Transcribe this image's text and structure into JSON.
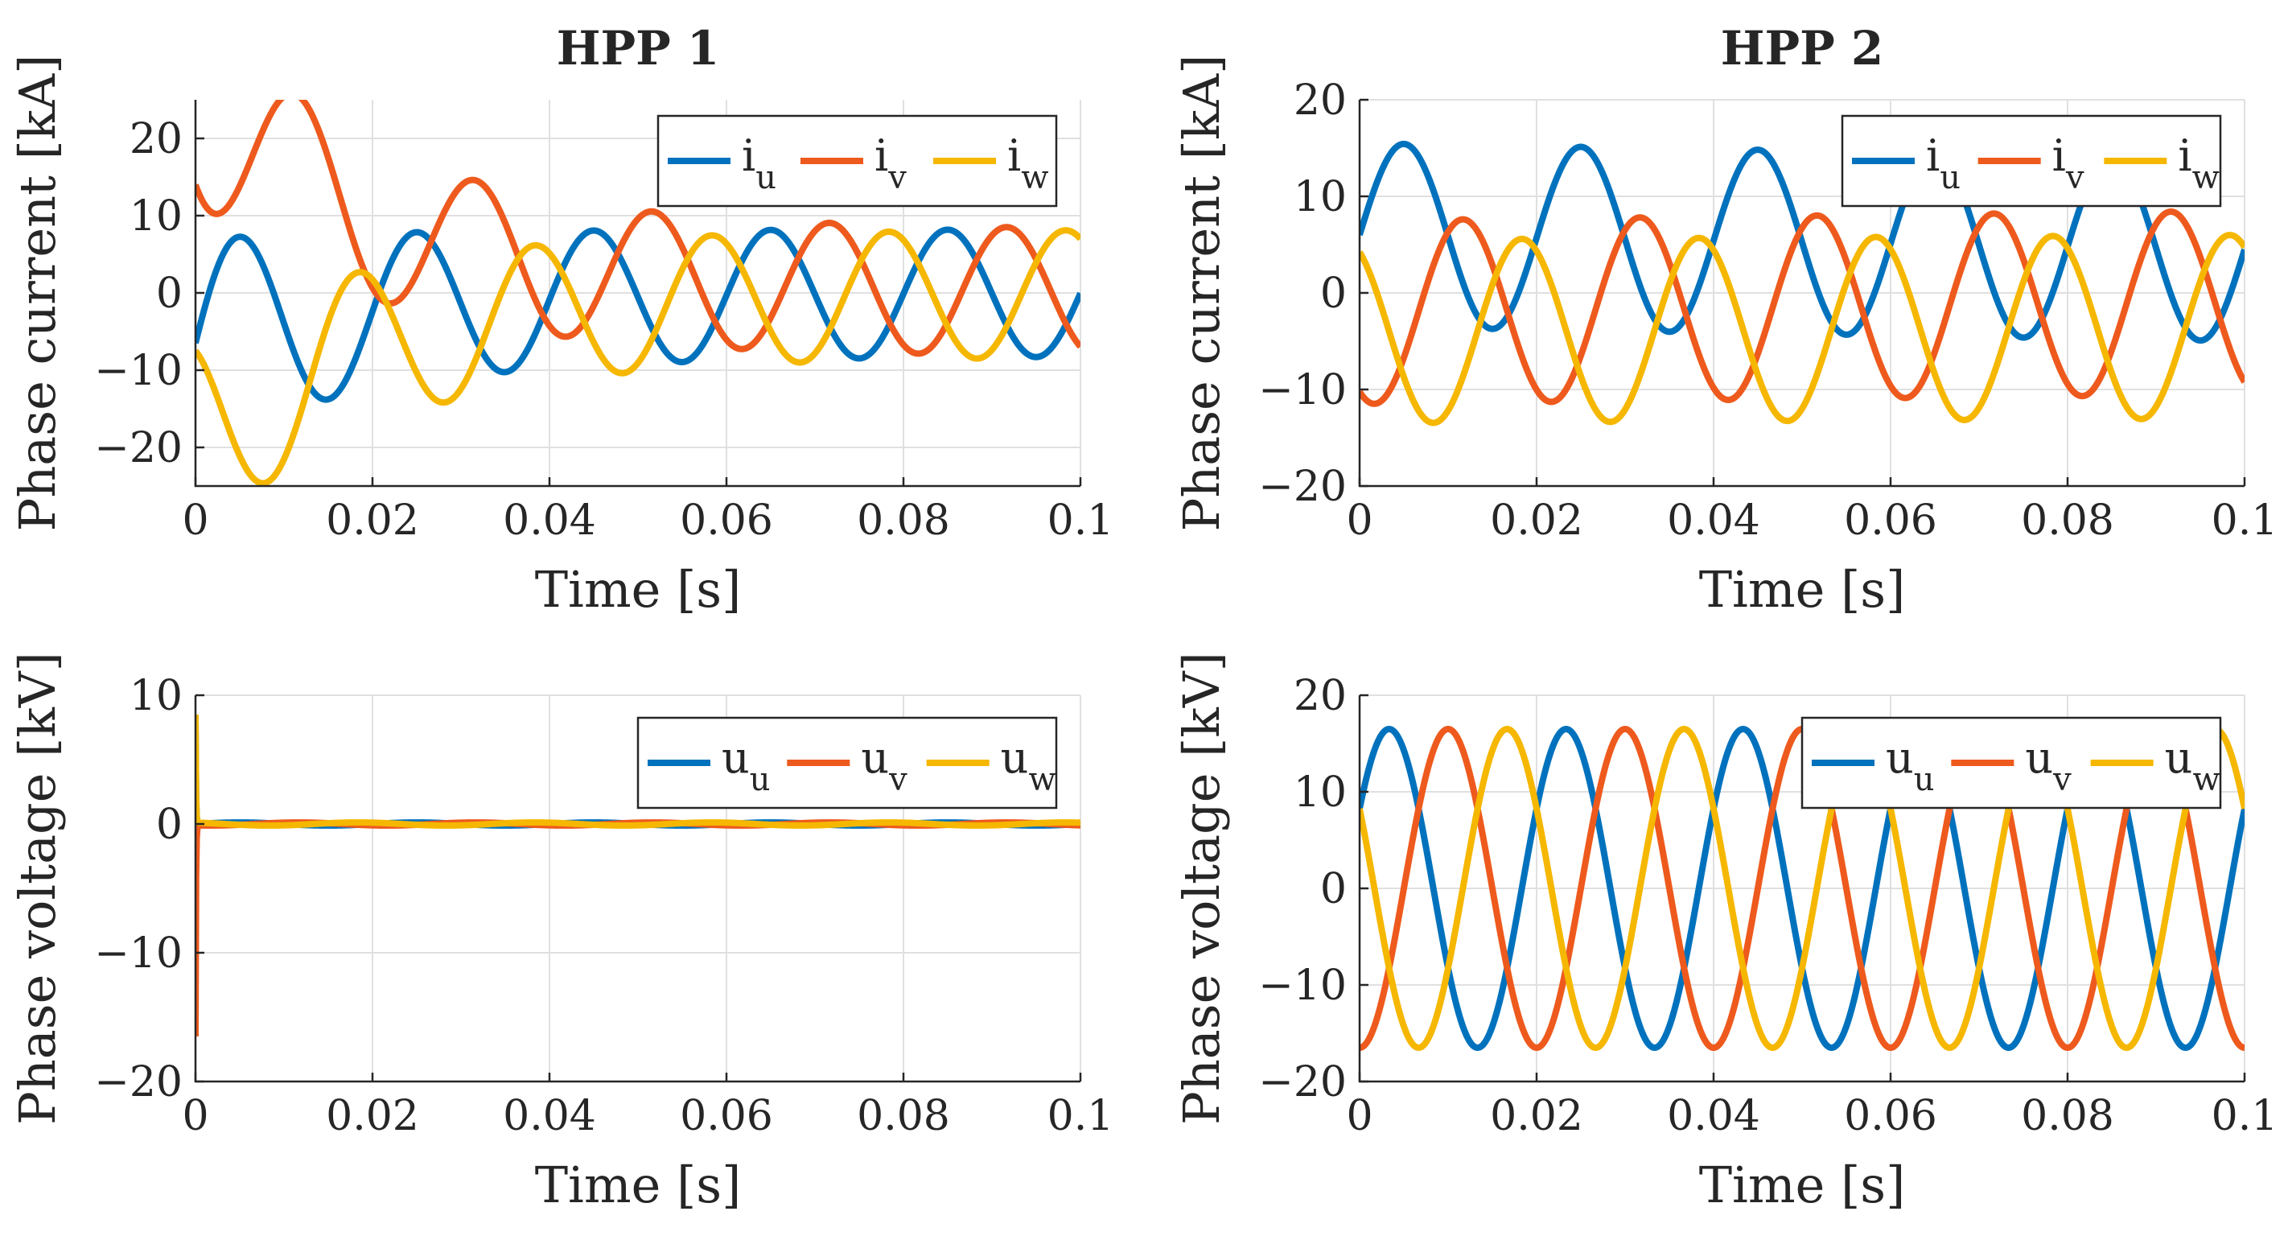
{
  "figure": {
    "background": "#ffffff"
  },
  "colors": {
    "u": "#0072BD",
    "v": "#EE5A1D",
    "w": "#F5B700"
  },
  "chart_data": [
    {
      "type": "line",
      "id": "hpp1-current",
      "title": "HPP 1",
      "xlabel": "Time [s]",
      "ylabel": "Phase current [kA]",
      "xlim": [
        0,
        0.1
      ],
      "ylim": [
        -25,
        25
      ],
      "xticks": [
        0,
        0.02,
        0.04,
        0.06,
        0.08,
        0.1
      ],
      "xtick_labels": [
        "0",
        "0.02",
        "0.04",
        "0.06",
        "0.08",
        "0.1"
      ],
      "yticks": [
        -20,
        -10,
        0,
        10,
        20
      ],
      "ytick_labels": [
        "−20",
        "−10",
        "0",
        "10",
        "20"
      ],
      "grid": true,
      "legend": {
        "position": "top-right",
        "entries": [
          {
            "base": "i",
            "sub": "u"
          },
          {
            "base": "i",
            "sub": "v"
          },
          {
            "base": "i",
            "sub": "w"
          }
        ]
      },
      "series": [
        {
          "name": "i_u",
          "kind": "damped",
          "color_key": "u",
          "freq": 50,
          "ac": 13.5,
          "dc": -6.5,
          "tau": 0.02,
          "ac_inf": 8.2,
          "phase_deg": 0
        },
        {
          "name": "i_v",
          "kind": "damped",
          "color_key": "v",
          "freq": 50,
          "ac": 13.5,
          "dc": 14.0,
          "tau": 0.02,
          "ac_inf": 8.2,
          "phase_deg": -120
        },
        {
          "name": "i_w",
          "kind": "damped",
          "color_key": "w",
          "freq": 50,
          "ac": 13.5,
          "dc": -7.5,
          "tau": 0.02,
          "ac_inf": 8.2,
          "phase_deg": 120
        }
      ]
    },
    {
      "type": "line",
      "id": "hpp2-current",
      "title": "HPP 2",
      "xlabel": "Time [s]",
      "ylabel": "Phase current [kA]",
      "xlim": [
        0,
        0.1
      ],
      "ylim": [
        -20,
        20
      ],
      "xticks": [
        0,
        0.02,
        0.04,
        0.06,
        0.08,
        0.1
      ],
      "xtick_labels": [
        "0",
        "0.02",
        "0.04",
        "0.06",
        "0.08",
        "0.1"
      ],
      "yticks": [
        -20,
        -10,
        0,
        10,
        20
      ],
      "ytick_labels": [
        "−20",
        "−10",
        "0",
        "10",
        "20"
      ],
      "grid": true,
      "legend": {
        "position": "top-right",
        "entries": [
          {
            "base": "i",
            "sub": "u"
          },
          {
            "base": "i",
            "sub": "v"
          },
          {
            "base": "i",
            "sub": "w"
          }
        ]
      },
      "series": [
        {
          "name": "i_u",
          "kind": "offset",
          "color_key": "u",
          "freq": 50,
          "amp": 9.5,
          "offset0": 6.0,
          "offset1": 4.5,
          "phase_deg": 0
        },
        {
          "name": "i_v",
          "kind": "offset",
          "color_key": "v",
          "freq": 50,
          "amp": 9.5,
          "offset0": -2.0,
          "offset1": -1.0,
          "phase_deg": -120
        },
        {
          "name": "i_w",
          "kind": "offset",
          "color_key": "w",
          "freq": 50,
          "amp": 9.5,
          "offset0": -4.0,
          "offset1": -3.5,
          "phase_deg": 120
        }
      ]
    },
    {
      "type": "line",
      "id": "hpp1-voltage",
      "title": "",
      "xlabel": "Time [s]",
      "ylabel": "Phase voltage [kV]",
      "xlim": [
        0,
        0.1
      ],
      "ylim": [
        -20,
        10
      ],
      "xticks": [
        0,
        0.02,
        0.04,
        0.06,
        0.08,
        0.1
      ],
      "xtick_labels": [
        "0",
        "0.02",
        "0.04",
        "0.06",
        "0.08",
        "0.1"
      ],
      "yticks": [
        -20,
        -10,
        0,
        10
      ],
      "ytick_labels": [
        "−20",
        "−10",
        "0",
        "10"
      ],
      "grid": true,
      "legend": {
        "position": "top-right",
        "entries": [
          {
            "base": "u",
            "sub": "u"
          },
          {
            "base": "u",
            "sub": "v"
          },
          {
            "base": "u",
            "sub": "w"
          }
        ]
      },
      "series": [
        {
          "name": "u_u",
          "kind": "collapse",
          "color_key": "u",
          "v0": 8.0,
          "freq": 50,
          "amp": 0.12,
          "phase_deg": 0
        },
        {
          "name": "u_v",
          "kind": "collapse",
          "color_key": "v",
          "v0": -16.5,
          "freq": 50,
          "amp": 0.12,
          "phase_deg": -120
        },
        {
          "name": "u_w",
          "kind": "collapse",
          "color_key": "w",
          "v0": 8.5,
          "freq": 50,
          "amp": 0.12,
          "phase_deg": 120
        }
      ]
    },
    {
      "type": "line",
      "id": "hpp2-voltage",
      "title": "",
      "xlabel": "Time [s]",
      "ylabel": "Phase voltage [kV]",
      "xlim": [
        0,
        0.1
      ],
      "ylim": [
        -20,
        20
      ],
      "xticks": [
        0,
        0.02,
        0.04,
        0.06,
        0.08,
        0.1
      ],
      "xtick_labels": [
        "0",
        "0.02",
        "0.04",
        "0.06",
        "0.08",
        "0.1"
      ],
      "yticks": [
        -20,
        -10,
        0,
        10,
        20
      ],
      "ytick_labels": [
        "−20",
        "−10",
        "0",
        "10",
        "20"
      ],
      "grid": true,
      "legend": {
        "position": "top-right",
        "entries": [
          {
            "base": "u",
            "sub": "u"
          },
          {
            "base": "u",
            "sub": "v"
          },
          {
            "base": "u",
            "sub": "w"
          }
        ]
      },
      "series": [
        {
          "name": "u_u",
          "kind": "sine",
          "color_key": "u",
          "freq": 50,
          "amp": 16.5,
          "phase_deg": 30
        },
        {
          "name": "u_v",
          "kind": "sine",
          "color_key": "v",
          "freq": 50,
          "amp": 16.5,
          "phase_deg": -90
        },
        {
          "name": "u_w",
          "kind": "sine",
          "color_key": "w",
          "freq": 50,
          "amp": 16.5,
          "phase_deg": 150
        }
      ]
    }
  ]
}
